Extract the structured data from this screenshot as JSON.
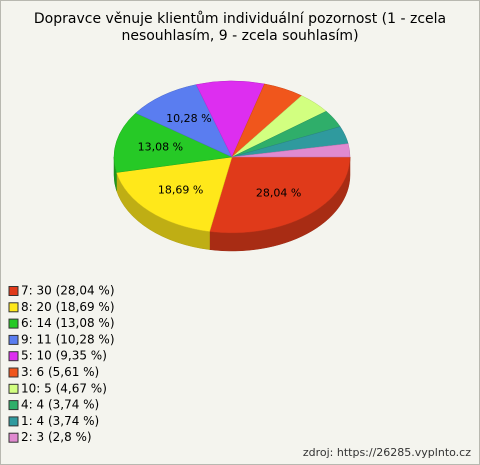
{
  "chart_data": {
    "type": "pie3d",
    "title": "Dopravce věnuje klientům individuální pozornost (1 - zcela nesouhlasím, 9 - zcela souhlasím)",
    "categories": [
      "7",
      "8",
      "6",
      "9",
      "5",
      "3",
      "10",
      "4",
      "1",
      "2"
    ],
    "values": [
      30,
      20,
      14,
      11,
      10,
      6,
      5,
      4,
      4,
      3
    ],
    "value_labels": [
      "28,04 %",
      "18,69 %",
      "13,08 %",
      "10,28 %",
      null,
      null,
      null,
      null,
      null,
      null
    ],
    "legend_labels": [
      "7: 30 (28,04 %)",
      "8: 20 (18,69 %)",
      "6: 14 (13,08 %)",
      "9: 11 (10,28 %)",
      "5: 10 (9,35 %)",
      "3: 6 (5,61 %)",
      "10: 5 (4,67 %)",
      "4: 4 (3,74 %)",
      "1: 4 (3,74 %)",
      "2: 3 (2,8 %)"
    ],
    "colors": [
      "#e03a1a",
      "#ffe81a",
      "#26c926",
      "#5a7df0",
      "#dd2ef0",
      "#f0561c",
      "#d2ff80",
      "#2fae6a",
      "#2f9a9e",
      "#e08ad0"
    ],
    "source": "zdroj: https://26285.vyplnto.cz"
  }
}
